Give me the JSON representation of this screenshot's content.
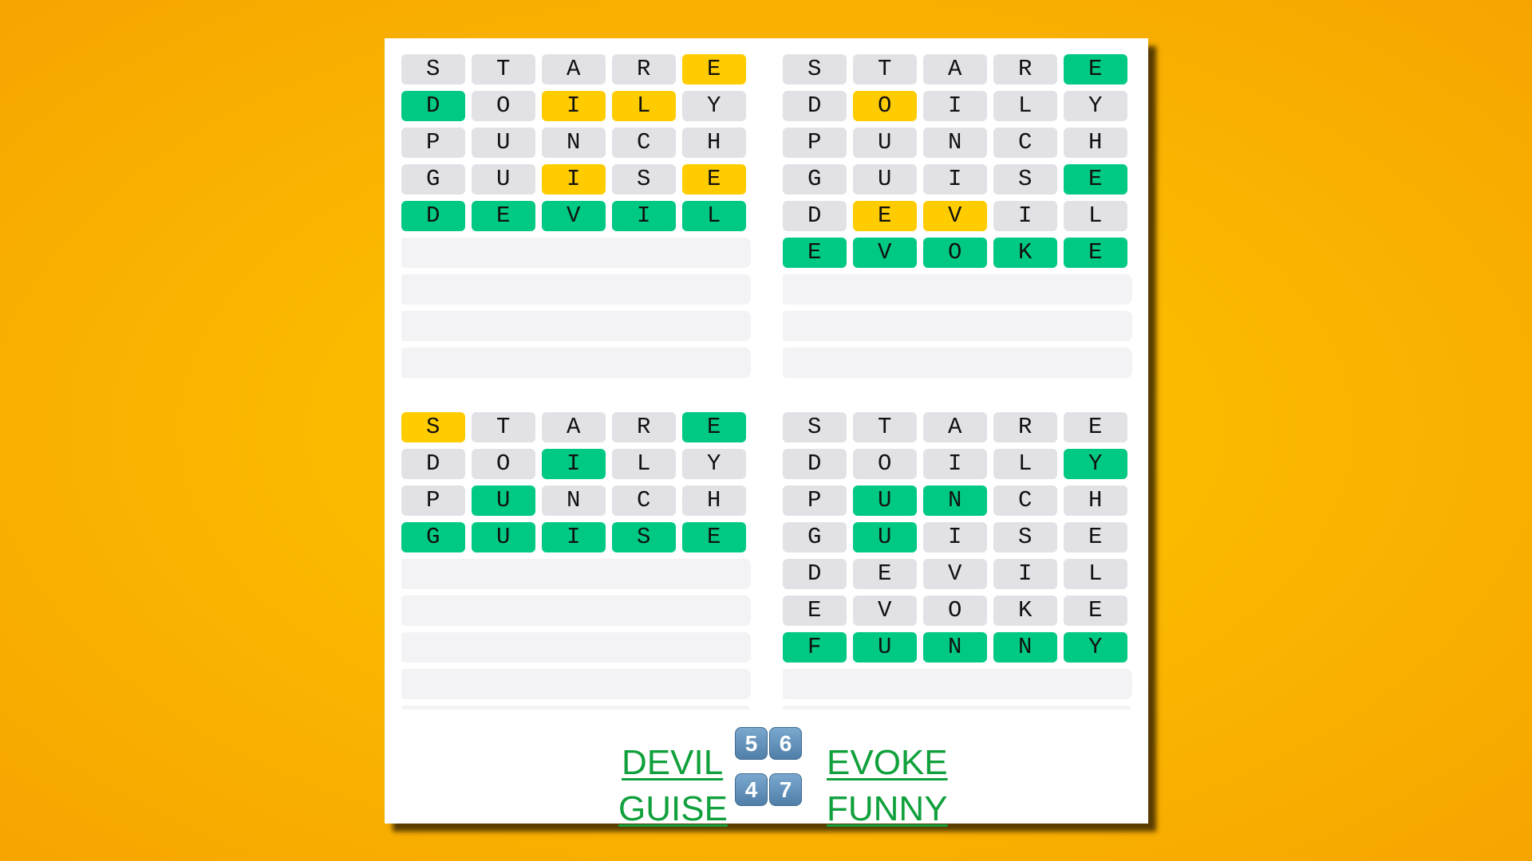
{
  "colors": {
    "green": "#00c983",
    "yellow": "#ffcc00",
    "grey": "#e2e2e6",
    "empty": "#f3f3f5",
    "link": "#10a03c"
  },
  "boards": [
    {
      "guesses": [
        [
          "STARE",
          "xxxxy"
        ],
        [
          "DOILY",
          "gxyyx"
        ],
        [
          "PUNCH",
          "xxxxx"
        ],
        [
          "GUISE",
          "xxyxy"
        ],
        [
          "DEVIL",
          "ggggg"
        ]
      ],
      "empty_rows": 4
    },
    {
      "guesses": [
        [
          "STARE",
          "xxxxg"
        ],
        [
          "DOILY",
          "xyxxx"
        ],
        [
          "PUNCH",
          "xxxxx"
        ],
        [
          "GUISE",
          "xxxxg"
        ],
        [
          "DEVIL",
          "xyyxx"
        ],
        [
          "EVOKE",
          "ggggg"
        ]
      ],
      "empty_rows": 3
    },
    {
      "guesses": [
        [
          "STARE",
          "yxxxg"
        ],
        [
          "DOILY",
          "xxgxx"
        ],
        [
          "PUNCH",
          "xgxxx"
        ],
        [
          "GUISE",
          "ggggg"
        ]
      ],
      "empty_rows": 5
    },
    {
      "guesses": [
        [
          "STARE",
          "xxxxx"
        ],
        [
          "DOILY",
          "xxxxg"
        ],
        [
          "PUNCH",
          "xggxx"
        ],
        [
          "GUISE",
          "xgxxx"
        ],
        [
          "DEVIL",
          "xxxxx"
        ],
        [
          "EVOKE",
          "xxxxx"
        ],
        [
          "FUNNY",
          "ggggg"
        ]
      ],
      "empty_rows": 2
    }
  ],
  "results": {
    "row1": {
      "left": "DEVIL",
      "scores": [
        "5",
        "6"
      ],
      "right": "EVOKE"
    },
    "row2": {
      "left": "GUISE",
      "scores": [
        "4",
        "7"
      ],
      "right": "FUNNY"
    }
  }
}
